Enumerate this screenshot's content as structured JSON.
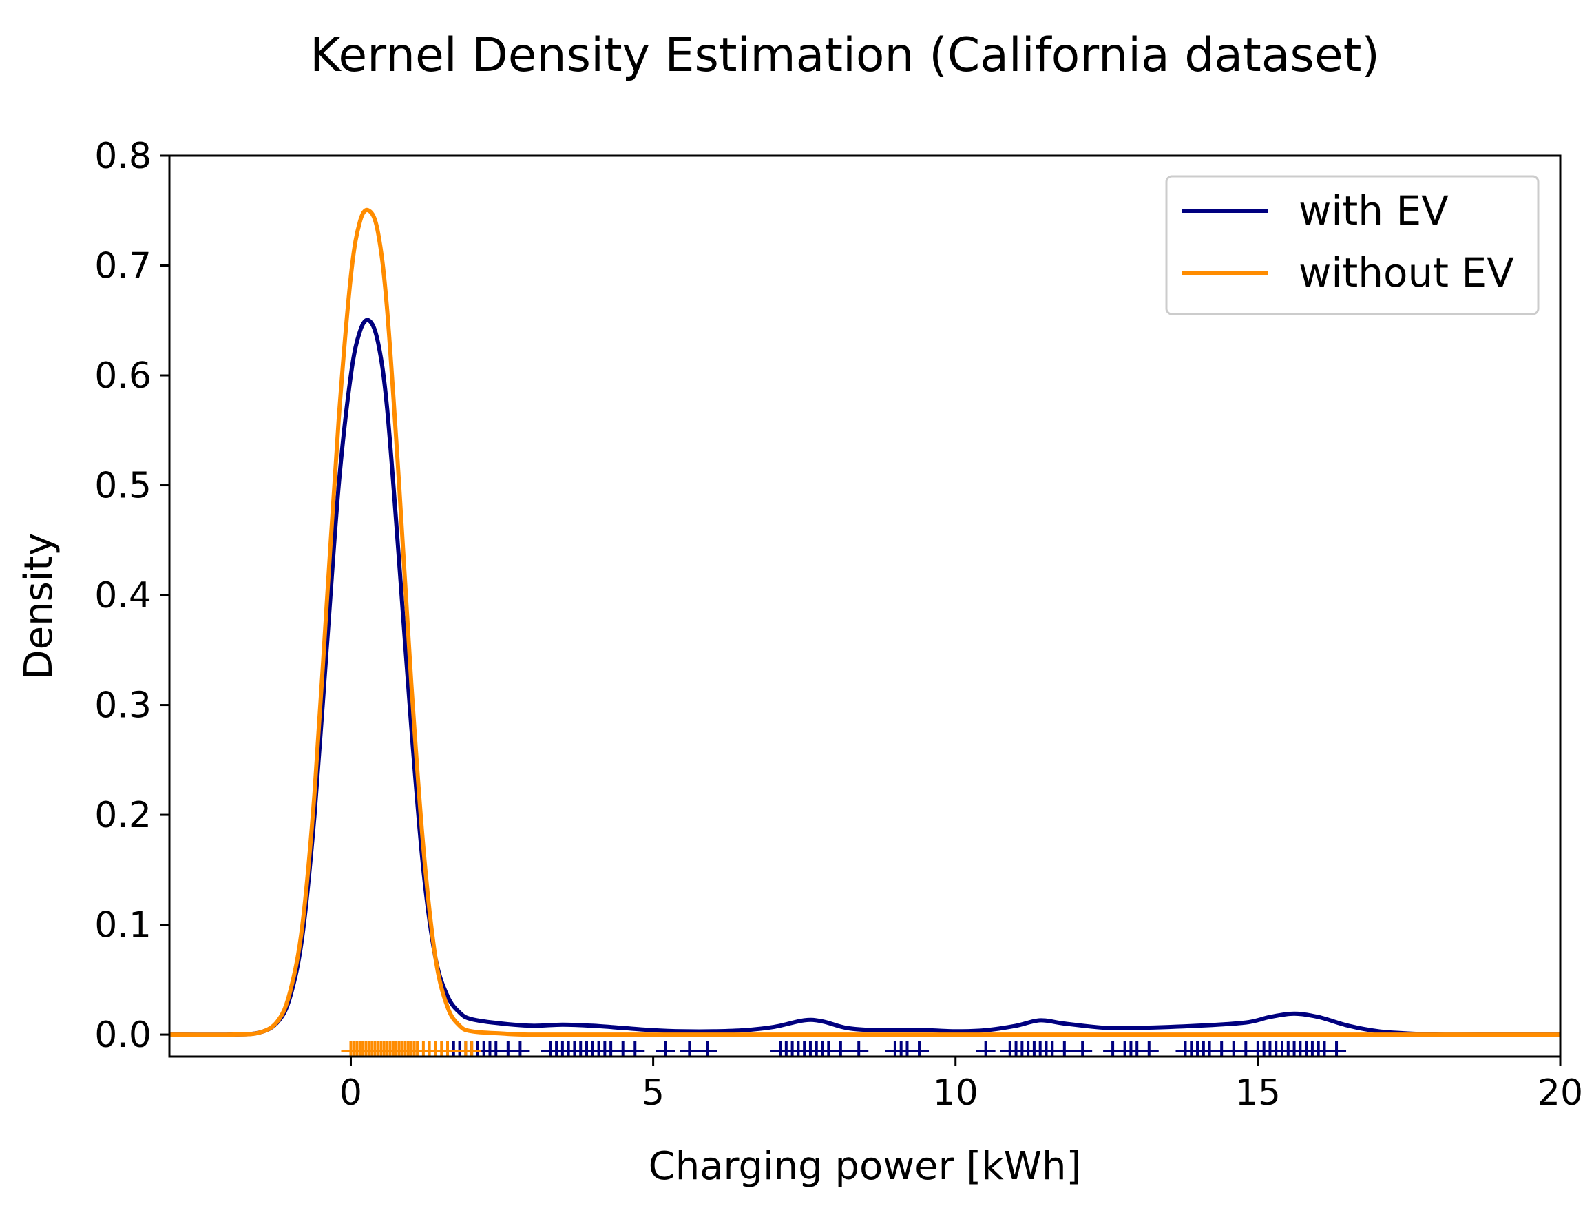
{
  "chart_data": {
    "type": "line",
    "title": "Kernel Density Estimation (California dataset)",
    "xlabel": "Charging power [kWh]",
    "ylabel": "Density",
    "xlim": [
      -3,
      20
    ],
    "ylim": [
      -0.02,
      0.8
    ],
    "xticks": [
      0,
      5,
      10,
      15,
      20
    ],
    "xtick_labels": [
      "0",
      "5",
      "10",
      "15",
      "20"
    ],
    "yticks": [
      0.0,
      0.1,
      0.2,
      0.3,
      0.4,
      0.5,
      0.6,
      0.7,
      0.8
    ],
    "ytick_labels": [
      "0.0",
      "0.1",
      "0.2",
      "0.3",
      "0.4",
      "0.5",
      "0.6",
      "0.7",
      "0.8"
    ],
    "legend_position": "top-right",
    "series": [
      {
        "name": "with EV",
        "label": "with EV",
        "color": "#00007f",
        "x": [
          -3,
          -2,
          -1.5,
          -1.2,
          -1.0,
          -0.8,
          -0.6,
          -0.4,
          -0.2,
          0.0,
          0.15,
          0.3,
          0.45,
          0.6,
          0.8,
          1.0,
          1.2,
          1.4,
          1.6,
          1.8,
          2.0,
          2.5,
          3.0,
          3.5,
          4.0,
          4.5,
          5.0,
          5.5,
          6.0,
          6.5,
          7.0,
          7.5,
          7.8,
          8.2,
          8.7,
          9.5,
          10.0,
          10.5,
          11.0,
          11.4,
          11.8,
          12.5,
          13.0,
          14.0,
          14.8,
          15.2,
          15.6,
          16.0,
          16.5,
          17.0,
          17.5,
          18.0,
          19.0,
          20.0
        ],
        "y": [
          0.0,
          0.0,
          0.002,
          0.012,
          0.035,
          0.09,
          0.2,
          0.35,
          0.5,
          0.6,
          0.64,
          0.65,
          0.63,
          0.57,
          0.43,
          0.28,
          0.15,
          0.07,
          0.035,
          0.02,
          0.014,
          0.01,
          0.008,
          0.009,
          0.008,
          0.006,
          0.004,
          0.003,
          0.003,
          0.004,
          0.007,
          0.013,
          0.012,
          0.006,
          0.004,
          0.004,
          0.003,
          0.004,
          0.008,
          0.013,
          0.01,
          0.006,
          0.006,
          0.008,
          0.011,
          0.016,
          0.019,
          0.016,
          0.008,
          0.003,
          0.001,
          0.0,
          0.0,
          0.0
        ]
      },
      {
        "name": "without EV",
        "label": "without EV",
        "color": "#ff8c00",
        "x": [
          -3,
          -2,
          -1.5,
          -1.2,
          -1.0,
          -0.8,
          -0.6,
          -0.4,
          -0.2,
          0.0,
          0.15,
          0.3,
          0.45,
          0.6,
          0.8,
          1.0,
          1.2,
          1.4,
          1.6,
          1.8,
          2.0,
          2.5,
          3.0,
          5.0,
          10.0,
          15.0,
          20.0
        ],
        "y": [
          0.0,
          0.0,
          0.002,
          0.013,
          0.04,
          0.1,
          0.22,
          0.39,
          0.56,
          0.69,
          0.74,
          0.75,
          0.73,
          0.66,
          0.5,
          0.32,
          0.17,
          0.07,
          0.025,
          0.008,
          0.003,
          0.001,
          0.0,
          0.0,
          0.0,
          0.0,
          0.0
        ]
      }
    ],
    "rug_with_ev": [
      1.6,
      1.7,
      1.8,
      1.9,
      2.0,
      2.1,
      2.2,
      2.3,
      2.4,
      2.6,
      2.8,
      3.3,
      3.4,
      3.5,
      3.6,
      3.7,
      3.8,
      3.9,
      4.0,
      4.1,
      4.2,
      4.3,
      4.5,
      4.7,
      5.2,
      5.6,
      5.9,
      7.1,
      7.2,
      7.3,
      7.4,
      7.5,
      7.6,
      7.7,
      7.8,
      7.9,
      8.1,
      8.4,
      9.0,
      9.1,
      9.2,
      9.4,
      10.5,
      10.9,
      11.0,
      11.1,
      11.2,
      11.3,
      11.4,
      11.5,
      11.6,
      11.8,
      12.1,
      12.6,
      12.8,
      12.9,
      13.0,
      13.2,
      13.8,
      13.9,
      14.0,
      14.1,
      14.2,
      14.4,
      14.6,
      14.8,
      15.0,
      15.1,
      15.2,
      15.3,
      15.4,
      15.5,
      15.6,
      15.7,
      15.8,
      15.9,
      16.0,
      16.1,
      16.3
    ],
    "rug_without_ev": [
      0.0,
      0.05,
      0.1,
      0.15,
      0.2,
      0.25,
      0.3,
      0.35,
      0.4,
      0.45,
      0.5,
      0.55,
      0.6,
      0.65,
      0.7,
      0.75,
      0.8,
      0.85,
      0.9,
      0.95,
      1.0,
      1.05,
      1.1,
      1.2,
      1.3,
      1.4,
      1.5,
      1.6,
      1.9,
      2.0
    ]
  }
}
